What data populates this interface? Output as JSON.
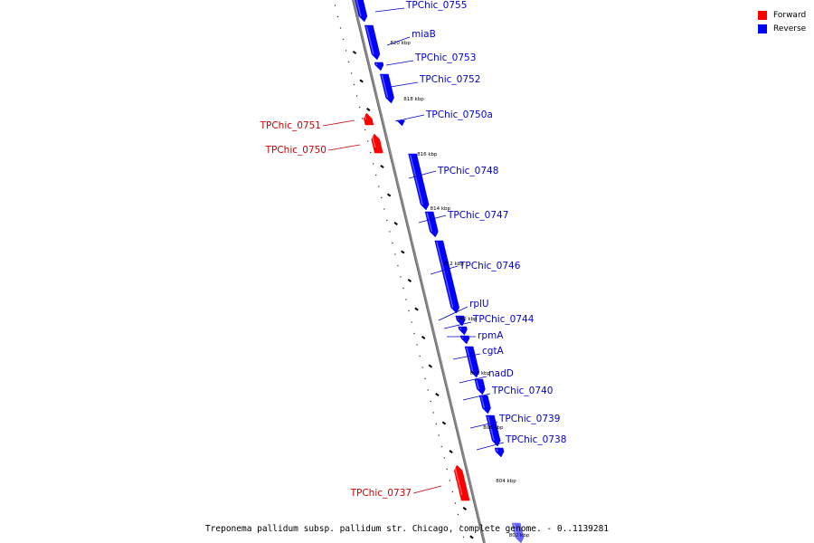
{
  "legend": {
    "forward_label": "Forward",
    "reverse_label": "Reverse",
    "forward_color": "#ff0000",
    "reverse_color": "#0000ff"
  },
  "caption": "Treponema pallidum subsp. pallidum str. Chicago, complete genome. - 0..1139281",
  "colors": {
    "forward_text": "#cc0000",
    "reverse_text": "#0000cc",
    "backbone": "#888888",
    "scale_text": "#000000"
  },
  "scale_labels": [
    "820 kbp",
    "818 kbp",
    "816 kbp",
    "814 kbp",
    "812 kbp",
    "810 kbp",
    "808 kbp",
    "806 kbp",
    "804 kbp",
    "802 kbp"
  ],
  "genes": [
    {
      "name": "TPChic_0755",
      "strand": "reverse"
    },
    {
      "name": "miaB",
      "strand": "reverse"
    },
    {
      "name": "TPChic_0753",
      "strand": "reverse"
    },
    {
      "name": "TPChic_0752",
      "strand": "reverse"
    },
    {
      "name": "TPChic_0750a",
      "strand": "reverse"
    },
    {
      "name": "TPChic_0751",
      "strand": "forward"
    },
    {
      "name": "TPChic_0750",
      "strand": "forward"
    },
    {
      "name": "TPChic_0748",
      "strand": "reverse"
    },
    {
      "name": "TPChic_0747",
      "strand": "reverse"
    },
    {
      "name": "TPChic_0746",
      "strand": "reverse"
    },
    {
      "name": "rplU",
      "strand": "reverse"
    },
    {
      "name": "TPChic_0744",
      "strand": "reverse"
    },
    {
      "name": "rpmA",
      "strand": "reverse"
    },
    {
      "name": "cgtA",
      "strand": "reverse"
    },
    {
      "name": "nadD",
      "strand": "reverse"
    },
    {
      "name": "TPChic_0740",
      "strand": "reverse"
    },
    {
      "name": "TPChic_0739",
      "strand": "reverse"
    },
    {
      "name": "TPChic_0738",
      "strand": "reverse"
    },
    {
      "name": "TPChic_0737",
      "strand": "forward"
    }
  ]
}
